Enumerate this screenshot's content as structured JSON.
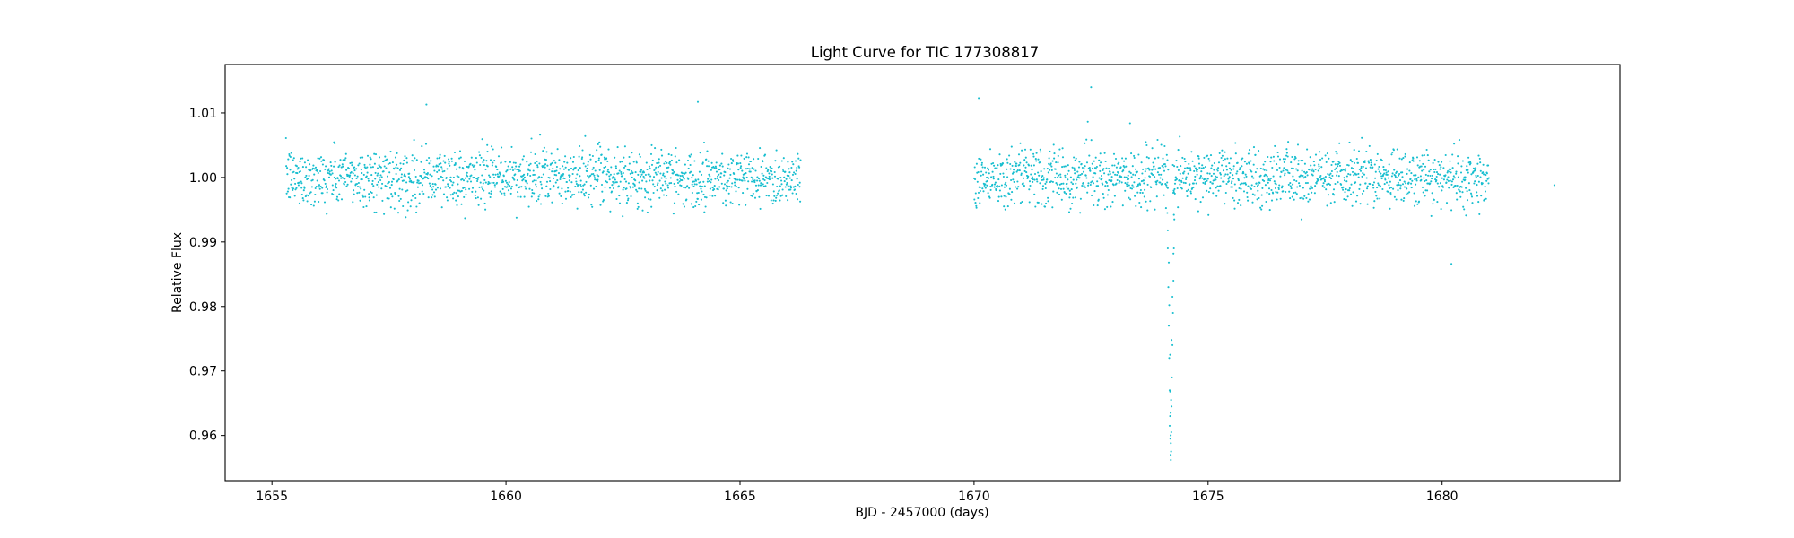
{
  "chart_data": {
    "type": "scatter",
    "title": "Light Curve for TIC 177308817",
    "xlabel": "BJD - 2457000 (days)",
    "ylabel": "Relative Flux",
    "xlim": [
      1654.0,
      1683.8
    ],
    "ylim": [
      0.953,
      1.0175
    ],
    "xticks": [
      1655,
      1660,
      1665,
      1670,
      1675,
      1680
    ],
    "xtick_labels": [
      "1655",
      "1660",
      "1665",
      "1670",
      "1675",
      "1680"
    ],
    "yticks": [
      0.96,
      0.97,
      0.98,
      0.99,
      1.0,
      1.01
    ],
    "ytick_labels": [
      "0.96",
      "0.97",
      "0.98",
      "0.99",
      "1.00",
      "1.01"
    ],
    "grid": false,
    "legend": null,
    "marker_color": "#17becf",
    "series": [
      {
        "baseline_flux": 1.0,
        "scatter_sigma": 0.0022,
        "segments": [
          [
            1655.3,
            1666.3
          ],
          [
            1670.0,
            1674.15
          ],
          [
            1674.25,
            1681.0
          ]
        ],
        "isolated_points": [
          [
            1682.4,
            0.9988
          ],
          [
            1672.5,
            1.014
          ],
          [
            1670.1,
            1.0123
          ],
          [
            1680.2,
            0.9866
          ],
          [
            1664.1,
            1.0117
          ],
          [
            1658.3,
            1.0113
          ]
        ],
        "transit": {
          "center": 1674.2,
          "min_flux": 0.956,
          "points": [
            [
              1674.12,
              0.9985
            ],
            [
              1674.13,
              0.9945
            ],
            [
              1674.14,
              0.989
            ],
            [
              1674.15,
              0.983
            ],
            [
              1674.16,
              0.977
            ],
            [
              1674.17,
              0.972
            ],
            [
              1674.18,
              0.967
            ],
            [
              1674.19,
              0.963
            ],
            [
              1674.195,
              0.9595
            ],
            [
              1674.2,
              0.957
            ],
            [
              1674.205,
              0.9562
            ],
            [
              1674.21,
              0.9575
            ],
            [
              1674.215,
              0.9605
            ],
            [
              1674.22,
              0.9645
            ],
            [
              1674.23,
              0.969
            ],
            [
              1674.24,
              0.974
            ],
            [
              1674.25,
              0.979
            ],
            [
              1674.26,
              0.984
            ],
            [
              1674.27,
              0.989
            ],
            [
              1674.28,
              0.9935
            ],
            [
              1674.29,
              0.9975
            ],
            [
              1674.18,
              0.9615
            ],
            [
              1674.2,
              0.9635
            ],
            [
              1674.21,
              0.9655
            ],
            [
              1674.19,
              0.9725
            ],
            [
              1674.22,
              0.9748
            ],
            [
              1674.17,
              0.9802
            ],
            [
              1674.24,
              0.9815
            ],
            [
              1674.16,
              0.9868
            ],
            [
              1674.26,
              0.9882
            ],
            [
              1674.14,
              0.9918
            ],
            [
              1674.27,
              0.9942
            ],
            [
              1674.2,
              0.96
            ],
            [
              1674.205,
              0.9588
            ],
            [
              1674.19,
              0.9668
            ]
          ]
        }
      }
    ]
  }
}
